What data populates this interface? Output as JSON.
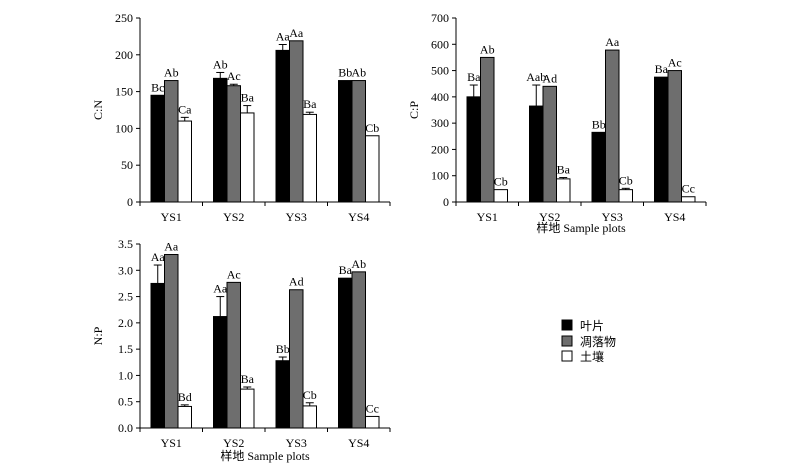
{
  "legend": {
    "items": [
      {
        "label": "叶片",
        "color": "#000000"
      },
      {
        "label": "凋落物",
        "color": "#6e6e6e"
      },
      {
        "label": "土壤",
        "color": "#ffffff"
      }
    ]
  },
  "chart_data": [
    {
      "type": "bar",
      "ylabel": "C:N",
      "xlabel": "",
      "categories": [
        "YS1",
        "YS2",
        "YS3",
        "YS4"
      ],
      "ylim": [
        0,
        250
      ],
      "yticks": [
        0,
        50,
        100,
        150,
        200,
        250
      ],
      "series": [
        {
          "name": "叶片",
          "values": [
            145,
            168,
            206,
            165
          ],
          "errors": [
            0,
            8,
            8,
            0
          ],
          "labels": [
            "Bc",
            "Ab",
            "Aa",
            "Bb"
          ]
        },
        {
          "name": "凋落物",
          "values": [
            165,
            158,
            219,
            165
          ],
          "errors": [
            0,
            2,
            0,
            0
          ],
          "labels": [
            "Ab",
            "Ac",
            "Aa",
            "Ab"
          ]
        },
        {
          "name": "土壤",
          "values": [
            110,
            121,
            119,
            90
          ],
          "errors": [
            5,
            10,
            3,
            0
          ],
          "labels": [
            "Ca",
            "Ba",
            "Ba",
            "Cb"
          ]
        }
      ]
    },
    {
      "type": "bar",
      "ylabel": "C:P",
      "xlabel": "样地 Sample plots",
      "categories": [
        "YS1",
        "YS2",
        "YS3",
        "YS4"
      ],
      "ylim": [
        0,
        700
      ],
      "yticks": [
        0,
        100,
        200,
        300,
        400,
        500,
        600,
        700
      ],
      "series": [
        {
          "name": "叶片",
          "values": [
            400,
            365,
            265,
            475
          ],
          "errors": [
            45,
            80,
            0,
            0
          ],
          "labels": [
            "Ba",
            "Aab",
            "Bb",
            "Ba"
          ]
        },
        {
          "name": "凋落物",
          "values": [
            550,
            440,
            578,
            500
          ],
          "errors": [
            0,
            0,
            0,
            0
          ],
          "labels": [
            "Ab",
            "Ad",
            "Aa",
            "Ac"
          ]
        },
        {
          "name": "土壤",
          "values": [
            47,
            88,
            47,
            20
          ],
          "errors": [
            0,
            5,
            5,
            0
          ],
          "labels": [
            "Cb",
            "Ba",
            "Cb",
            "Cc"
          ]
        }
      ]
    },
    {
      "type": "bar",
      "ylabel": "N:P",
      "xlabel": "样地 Sample plots",
      "categories": [
        "YS1",
        "YS2",
        "YS3",
        "YS4"
      ],
      "ylim": [
        0,
        3.5
      ],
      "yticks": [
        0,
        0.5,
        1.0,
        1.5,
        2.0,
        2.5,
        3.0,
        3.5
      ],
      "series": [
        {
          "name": "叶片",
          "values": [
            2.75,
            2.12,
            1.28,
            2.85
          ],
          "errors": [
            0.35,
            0.38,
            0.07,
            0
          ],
          "labels": [
            "Aa",
            "Aa",
            "Bb",
            "Ba"
          ]
        },
        {
          "name": "凋落物",
          "values": [
            3.3,
            2.77,
            2.63,
            2.97
          ],
          "errors": [
            0,
            0,
            0,
            0
          ],
          "labels": [
            "Aa",
            "Ac",
            "Ad",
            "Ab"
          ]
        },
        {
          "name": "土壤",
          "values": [
            0.41,
            0.74,
            0.42,
            0.22
          ],
          "errors": [
            0.03,
            0.04,
            0.06,
            0
          ],
          "labels": [
            "Bd",
            "Ba",
            "Cb",
            "Cc"
          ]
        }
      ]
    }
  ]
}
